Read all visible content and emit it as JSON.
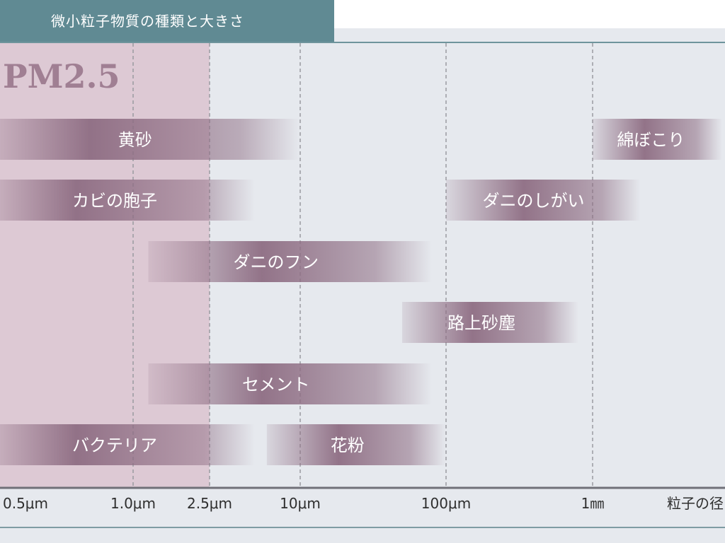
{
  "header": {
    "title": "微小粒子物質の種類と大きさ"
  },
  "chart_data": {
    "type": "bar",
    "subtype": "range-bars",
    "title": "微小粒子物質の種類と大きさ",
    "xlabel": "粒子の径",
    "x_scale": "log",
    "x_unit": "μm",
    "x_ticks": [
      {
        "label": "0.5μm",
        "value": 0.5
      },
      {
        "label": "1.0μm",
        "value": 1.0
      },
      {
        "label": "2.5μm",
        "value": 2.5
      },
      {
        "label": "10μm",
        "value": 10
      },
      {
        "label": "100μm",
        "value": 100
      },
      {
        "label": "1㎜",
        "value": 1000
      }
    ],
    "highlight_region": {
      "label": "PM2.5",
      "from": 0.5,
      "to": 2.5,
      "color": "#ddc9d4"
    },
    "bar_color": "#8e6d83",
    "grid": true,
    "series": [
      {
        "name": "黄砂",
        "from": 0.5,
        "to": 10
      },
      {
        "name": "綿ぼこり",
        "from": 1000,
        "to": 3000
      },
      {
        "name": "カビの胞子",
        "from": 0.5,
        "to": 5
      },
      {
        "name": "ダニのしがい",
        "from": 100,
        "to": 1500
      },
      {
        "name": "ダニのフン",
        "from": 1.2,
        "to": 80
      },
      {
        "name": "路上砂塵",
        "from": 50,
        "to": 800
      },
      {
        "name": "セメント",
        "from": 1.2,
        "to": 80
      },
      {
        "name": "バクテリア",
        "from": 0.5,
        "to": 5
      },
      {
        "name": "花粉",
        "from": 6,
        "to": 100
      }
    ]
  }
}
